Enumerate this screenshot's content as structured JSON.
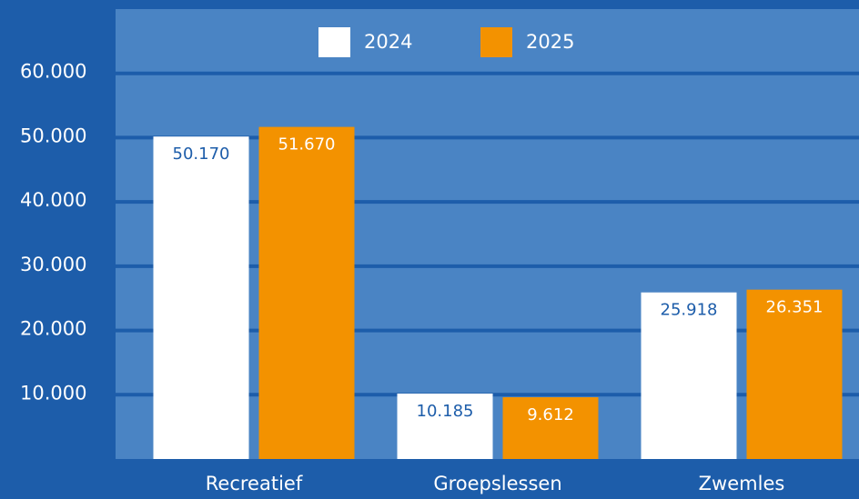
{
  "chart_data": {
    "type": "bar",
    "categories": [
      "Recreatief",
      "Groepslessen",
      "Zwemles"
    ],
    "series": [
      {
        "name": "2024",
        "color": "#ffffff",
        "values": [
          50170,
          10185,
          25918
        ],
        "value_labels": [
          "50.170",
          "10.185",
          "25.918"
        ]
      },
      {
        "name": "2025",
        "color": "#f39200",
        "values": [
          51670,
          9612,
          26351
        ],
        "value_labels": [
          "51.670",
          "9.612",
          "26.351"
        ]
      }
    ],
    "ylim": [
      0,
      70000
    ],
    "yticks": [
      {
        "value": 10000,
        "label": "10.000"
      },
      {
        "value": 20000,
        "label": "20.000"
      },
      {
        "value": 30000,
        "label": "30.000"
      },
      {
        "value": 40000,
        "label": "40.000"
      },
      {
        "value": 50000,
        "label": "50.000"
      },
      {
        "value": 60000,
        "label": "60.000"
      }
    ],
    "grid": true,
    "legend": "top"
  }
}
